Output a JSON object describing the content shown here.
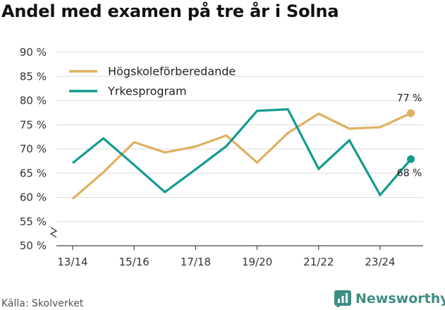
{
  "title": "Andel med examen på tre år i Solna",
  "source": "Källa: Skolverket",
  "brand": {
    "name": "Newsworthy",
    "color": "#3e8e84"
  },
  "chart_data": {
    "type": "line",
    "x": [
      "13/14",
      "14/15",
      "15/16",
      "16/17",
      "17/18",
      "18/19",
      "19/20",
      "20/21",
      "21/22",
      "22/23",
      "23/24",
      "24/25"
    ],
    "tick_labels": [
      "13/14",
      "15/16",
      "17/18",
      "19/20",
      "21/22",
      "23/24"
    ],
    "y_ticks": [
      "50 %",
      "55 %",
      "60 %",
      "65 %",
      "70 %",
      "75 %",
      "80 %",
      "85 %",
      "90 %"
    ],
    "ylim": [
      50,
      90
    ],
    "y_axis_break": true,
    "grid": "horizontal",
    "legend_placement": "top-left",
    "series": [
      {
        "name": "Högskoleförberedande",
        "color": "#e0b05f",
        "values": [
          59.7,
          65.2,
          71.4,
          69.3,
          70.5,
          72.8,
          67.2,
          73.3,
          77.3,
          74.2,
          74.5,
          77.4
        ],
        "end_label": "77 %"
      },
      {
        "name": "Yrkesprogram",
        "color": "#139b8f",
        "values": [
          67.1,
          72.2,
          66.7,
          61.1,
          65.8,
          70.6,
          77.9,
          78.2,
          65.9,
          71.8,
          60.5,
          67.9
        ],
        "end_label": "68 %"
      }
    ]
  }
}
